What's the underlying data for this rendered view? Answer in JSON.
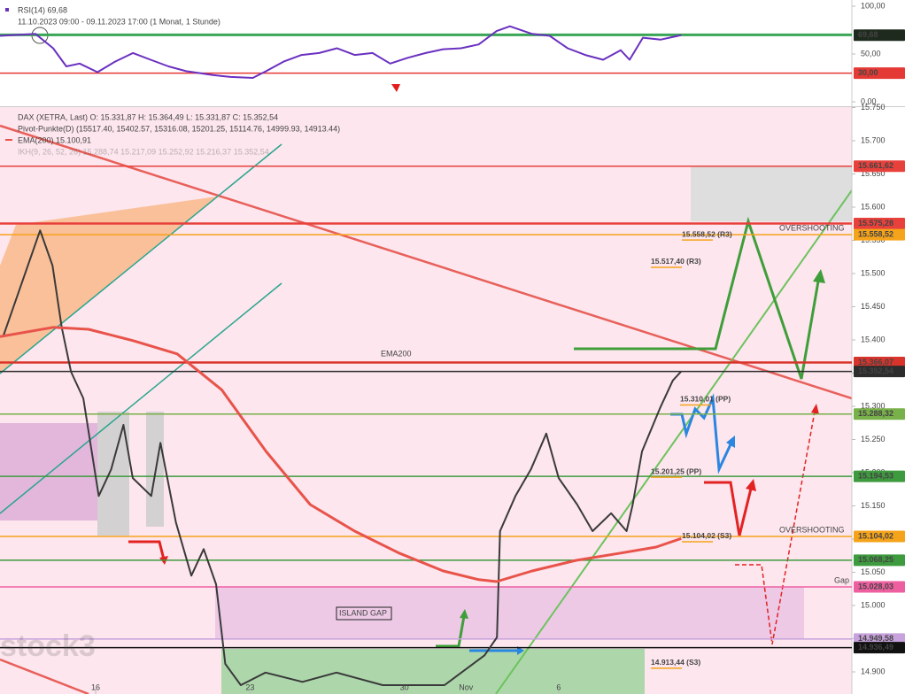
{
  "chart_data": [
    {
      "type": "line",
      "title": "RSI(14) 69,68",
      "subtitle": "11.10.2023 09:00 - 09.11.2023 17:00 (1 Monat, 1 Stunde)",
      "xlim": [
        -3.1,
        24.5
      ],
      "ylim": [
        0,
        100
      ],
      "yticks": [
        {
          "value": 100,
          "label": "100,00"
        },
        {
          "value": 50,
          "label": "50,00"
        },
        {
          "value": 0,
          "label": "0,00"
        }
      ],
      "hlines": [
        {
          "value": 70,
          "color": "#3aa655"
        },
        {
          "value": 30,
          "color": "#e53935"
        }
      ],
      "levels": [
        {
          "value": 69.68,
          "label": "69,68",
          "color": "#1e2a1e"
        },
        {
          "value": 30,
          "label": "30,00",
          "color": "#e53935"
        }
      ],
      "series": [
        {
          "color": "#6a30c0",
          "x": [
            -3.1,
            -1.95,
            -1.38,
            -0.95,
            -0.52,
            0.06,
            0.63,
            1.21,
            1.78,
            2.36,
            2.93,
            3.79,
            4.37,
            5.09,
            5.52,
            6.09,
            6.67,
            7.24,
            7.82,
            8.39,
            8.97,
            9.54,
            10.11,
            10.69,
            11.26,
            11.84,
            12.41,
            12.99,
            13.42,
            14.14,
            14.71,
            15.29,
            15.86,
            16.44,
            17.01,
            17.3,
            17.73,
            18.3,
            18.97
          ],
          "values": [
            69,
            71,
            56,
            37,
            40,
            31,
            42,
            51,
            44,
            37,
            32,
            28,
            26,
            25,
            32,
            42,
            49,
            51,
            56,
            49,
            51,
            40,
            46,
            51,
            55,
            56,
            60,
            74,
            79,
            71,
            69,
            56,
            49,
            44,
            54,
            44,
            67,
            65,
            69.68
          ]
        }
      ]
    },
    {
      "type": "line",
      "xlim": [
        -3.1,
        24.5
      ],
      "ylim": [
        14850,
        15750
      ],
      "xticks": [
        {
          "value": 0,
          "label": "16"
        },
        {
          "value": 5,
          "label": "23"
        },
        {
          "value": 10,
          "label": "30"
        },
        {
          "value": 12,
          "label": "Nov"
        },
        {
          "value": 15,
          "label": "6"
        }
      ],
      "yticks": [
        {
          "value": 15750,
          "label": "15.750"
        },
        {
          "value": 15700,
          "label": "15.700"
        },
        {
          "value": 15650,
          "label": "15.650"
        },
        {
          "value": 15600,
          "label": "15.600"
        },
        {
          "value": 15550,
          "label": "15.550"
        },
        {
          "value": 15500,
          "label": "15.500"
        },
        {
          "value": 15450,
          "label": "15.450"
        },
        {
          "value": 15400,
          "label": "15.400"
        },
        {
          "value": 15350,
          "label": "15.350"
        },
        {
          "value": 15300,
          "label": "15.300"
        },
        {
          "value": 15250,
          "label": "15.250"
        },
        {
          "value": 15200,
          "label": "15.200"
        },
        {
          "value": 15150,
          "label": "15.150"
        },
        {
          "value": 15100,
          "label": "15.100"
        },
        {
          "value": 15050,
          "label": "15.050"
        },
        {
          "value": 15000,
          "label": "15.000"
        },
        {
          "value": 14950,
          "label": "14.950"
        },
        {
          "value": 14900,
          "label": "14.900"
        }
      ],
      "legend_extra": [
        "Pivot-Punkte(D) (15517.40, 15402.57, 15316.08, 15201.25, 15114.76, 14999.93, 14913.44)",
        "IKH(9, 26, 52, 26) 15.288,74 15.217,09 15.252,92 15.216,37 15.352,54"
      ],
      "series": [
        {
          "name": "DAX (XETRA, Last) O: 15.331,87 H: 15.364,49 L: 15.331,87 C: 15.352,54",
          "color": "#3a3a3a",
          "x": [
            -3.0,
            -1.8,
            -1.4,
            -1.1,
            -0.8,
            -0.4,
            0.1,
            0.5,
            0.9,
            1.2,
            1.8,
            2.1,
            2.6,
            3.1,
            3.5,
            3.9,
            4.2,
            4.7,
            5.5,
            6.7,
            7.8,
            9.3,
            11.3,
            12.6,
            13.0,
            13.1,
            13.6,
            14.1,
            14.6,
            15.0,
            15.6,
            16.1,
            16.7,
            17.2,
            17.4,
            17.7,
            18.3,
            18.7,
            18.97
          ],
          "values": [
            15405,
            15565,
            15512,
            15419,
            15352,
            15312,
            15165,
            15205,
            15272,
            15192,
            15165,
            15245,
            15125,
            15045,
            15085,
            15032,
            14912,
            14880,
            14899,
            14885,
            14899,
            14880,
            14880,
            14925,
            14952,
            15112,
            15165,
            15205,
            15259,
            15192,
            15152,
            15112,
            15139,
            15112,
            15152,
            15232,
            15299,
            15339,
            15352.54
          ]
        },
        {
          "name": "EMA(200) 15.100,91",
          "color": "#e8534a",
          "x": [
            -3.1,
            -1.38,
            -0.23,
            1.21,
            2.64,
            4.08,
            5.52,
            6.95,
            8.39,
            9.83,
            11.26,
            12.41,
            12.99,
            14.14,
            15.57,
            17.01,
            18.16,
            18.97
          ],
          "values": [
            15405,
            15419,
            15416,
            15399,
            15379,
            15325,
            15232,
            15152,
            15112,
            15079,
            15052,
            15039,
            15036,
            15052,
            15068,
            15079,
            15088,
            15100.91
          ]
        }
      ],
      "levels": [
        {
          "value": 15661.62,
          "label": "15.661,62",
          "color": "#e8413c"
        },
        {
          "value": 15575.28,
          "label": "15.575,28",
          "color": "#e8413c"
        },
        {
          "value": 15558.52,
          "label": "15.558,52",
          "color": "#f5a31a"
        },
        {
          "value": 15366.07,
          "label": "15.366,07",
          "color": "#d9342b"
        },
        {
          "value": 15352.54,
          "label": "15.352,54",
          "color": "#2d2d2d"
        },
        {
          "value": 15288.32,
          "label": "15.288,32",
          "color": "#78b04a"
        },
        {
          "value": 15194.53,
          "label": "15.194,53",
          "color": "#3e9a3e"
        },
        {
          "value": 15104.02,
          "label": "15.104,02",
          "color": "#f5a31a"
        },
        {
          "value": 15068.25,
          "label": "15.068,25",
          "color": "#3e9a3e"
        },
        {
          "value": 15028.03,
          "label": "15.028,03",
          "color": "#ee5fa0"
        },
        {
          "value": 14949.58,
          "label": "14.949,58",
          "color": "#c7a2dc"
        },
        {
          "value": 14936.49,
          "label": "14.936,49",
          "color": "#111111"
        }
      ],
      "pivots": [
        {
          "value": 15558.52,
          "label": "15.558,52 (R3)"
        },
        {
          "value": 15517.4,
          "label": "15.517,40 (R3)"
        },
        {
          "value": 15310.01,
          "label": "15.310,01 (PP)"
        },
        {
          "value": 15201.25,
          "label": "15.201,25 (PP)"
        },
        {
          "value": 15104.02,
          "label": "15.104,02 (S3)"
        },
        {
          "value": 14913.44,
          "label": "14.913,44 (S3)"
        }
      ],
      "annotations": [
        "EMA200",
        "ISLAND GAP",
        "OVERSHOOTING",
        "OVERSHOOTING",
        "Gap"
      ],
      "watermark": "stock3"
    }
  ]
}
